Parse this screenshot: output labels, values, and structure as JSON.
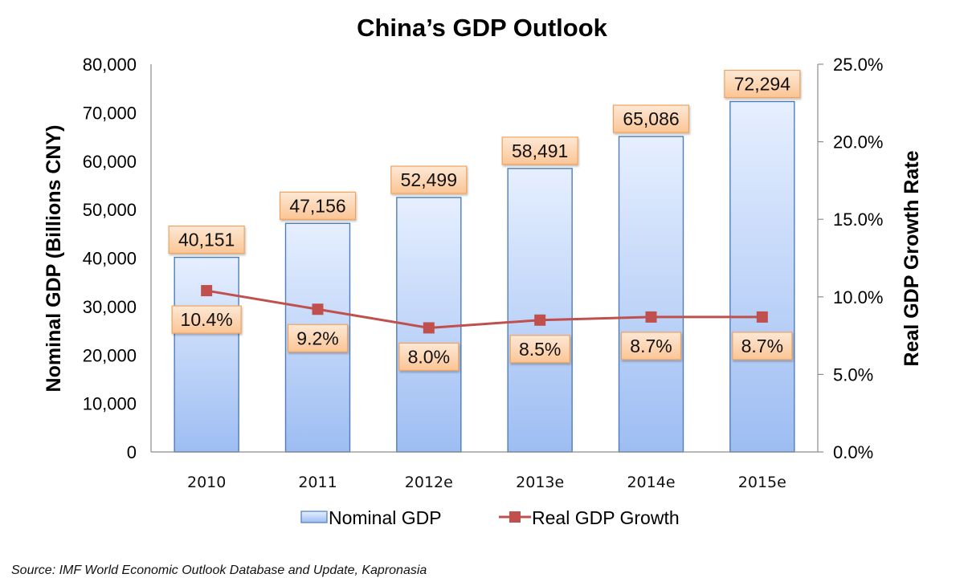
{
  "chart_data": {
    "type": "bar+line",
    "title": "China’s GDP Outlook",
    "categories": [
      "2010",
      "2011",
      "2012e",
      "2013e",
      "2014e",
      "2015e"
    ],
    "series": [
      {
        "name": "Nominal GDP",
        "type": "bar",
        "axis": "left",
        "values": [
          40151,
          47156,
          52499,
          58491,
          65086,
          72294
        ],
        "labels": [
          "40,151",
          "47,156",
          "52,499",
          "58,491",
          "65,086",
          "72,294"
        ]
      },
      {
        "name": "Real GDP Growth",
        "type": "line",
        "axis": "right",
        "values": [
          10.4,
          9.2,
          8.0,
          8.5,
          8.7,
          8.7
        ],
        "labels": [
          "10.4%",
          "9.2%",
          "8.0%",
          "8.5%",
          "8.7%",
          "8.7%"
        ]
      }
    ],
    "y_left": {
      "label": "Nominal GDP (Billions CNY)",
      "range": [
        0,
        80000
      ],
      "ticks": [
        0,
        10000,
        20000,
        30000,
        40000,
        50000,
        60000,
        70000,
        80000
      ],
      "tick_labels": [
        "0",
        "10,000",
        "20,000",
        "30,000",
        "40,000",
        "50,000",
        "60,000",
        "70,000",
        "80,000"
      ]
    },
    "y_right": {
      "label": "Real GDP Growth Rate",
      "range": [
        0,
        25
      ],
      "ticks": [
        0,
        5,
        10,
        15,
        20,
        25
      ],
      "tick_labels": [
        "0.0%",
        "5.0%",
        "10.0%",
        "15.0%",
        "20.0%",
        "25.0%"
      ]
    },
    "grid": false,
    "legend": {
      "position": "bottom",
      "items": [
        "Nominal GDP",
        "Real GDP Growth"
      ]
    },
    "colors": {
      "bar_top": "#e6efff",
      "bar_bottom": "#9dbdf2",
      "bar_border": "#4f7db8",
      "line": "#c0504d",
      "label_bg_top": "#fde8d5",
      "label_bg_bottom": "#fbc595",
      "label_border": "#f0a35e",
      "axis": "#8c8c8c"
    }
  },
  "source": "Source: IMF World Economic Outlook Database and Update, Kapronasia"
}
